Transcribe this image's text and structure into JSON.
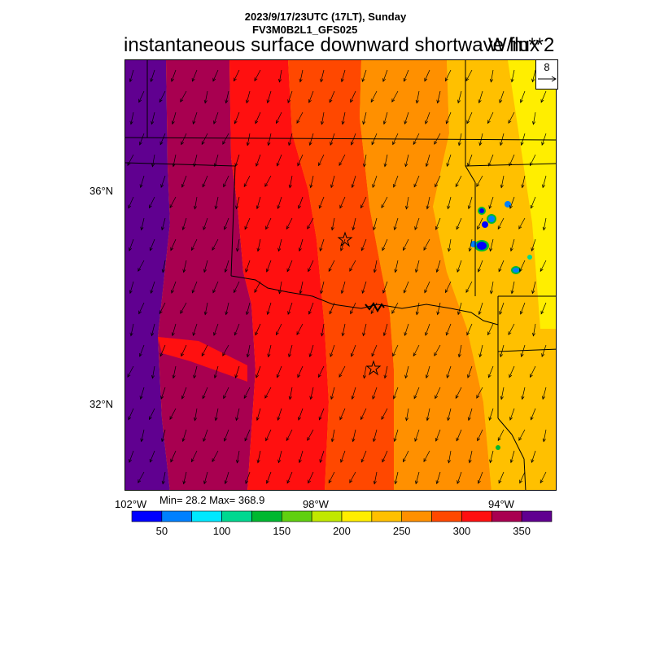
{
  "header": {
    "datetime": "2023/9/17/23UTC (17LT), Sunday",
    "model": "FV3M0B2L1_GFS025",
    "title": "instantaneous surface downward shortwave flux",
    "units": "W/m**2"
  },
  "reference_vector": {
    "value": "8"
  },
  "axes": {
    "lat_labels": [
      "36°N",
      "32°N"
    ],
    "lon_labels": [
      "102°W",
      "98°W",
      "94°W"
    ]
  },
  "stats": {
    "text": "Min= 28.2 Max= 368.9",
    "min": 28.2,
    "max": 368.9
  },
  "colorbar": {
    "colors": [
      "#0000ff",
      "#0080ff",
      "#00e8ff",
      "#00d890",
      "#00b830",
      "#60d010",
      "#c0e800",
      "#ffee00",
      "#ffc000",
      "#ff9000",
      "#ff4800",
      "#ff1010",
      "#a80050",
      "#600090"
    ],
    "labels": [
      "50",
      "100",
      "150",
      "200",
      "250",
      "300",
      "350"
    ]
  },
  "chart_data": {
    "type": "heatmap",
    "field": "instantaneous surface downward shortwave flux",
    "units": "W/m**2",
    "lon_range": [
      -102.5,
      -93.5
    ],
    "lat_range": [
      30.4,
      38.6
    ],
    "bins": [
      25,
      50,
      75,
      100,
      125,
      150,
      175,
      200,
      225,
      250,
      275,
      300,
      325,
      350,
      375
    ],
    "pattern": "flux decreases west to east: ~350-369 in west, ~300-325 central, ~250-275 east, ~200-225 far northeast; isolated low cells (~25-75) near 35.5N 94W",
    "wind_vectors": "general southward/south-southwest flow across domain",
    "markers": [
      "star near 35.2N 97.5W",
      "star near 32.8N 97.0W"
    ]
  }
}
